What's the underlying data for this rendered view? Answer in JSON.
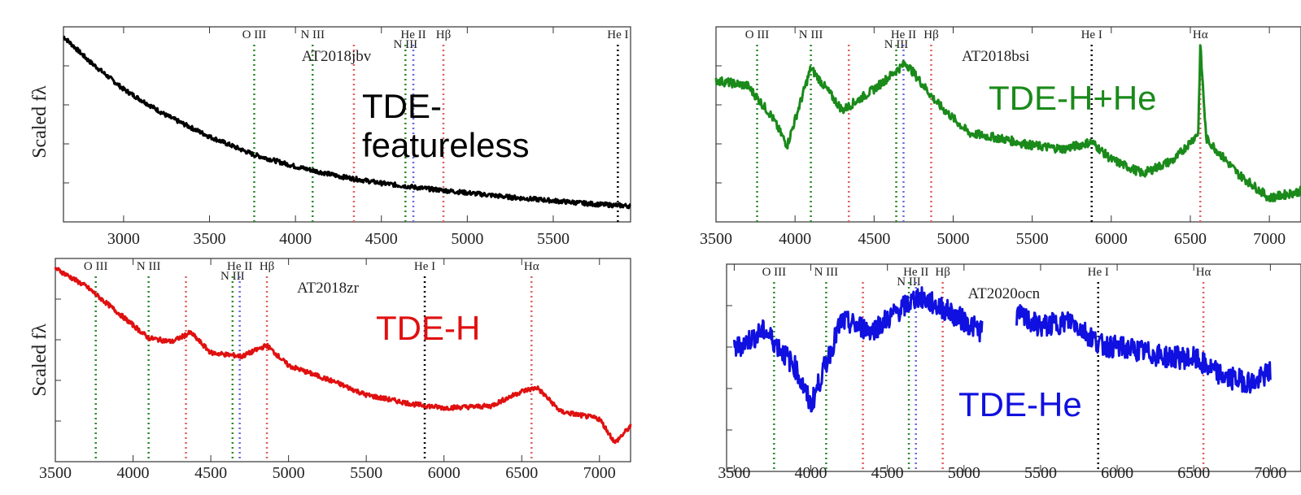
{
  "ylabel": "Scaled fλ",
  "chart_data": [
    {
      "type": "line",
      "object": "AT2018jbv",
      "class_label": "TDE-\nfeatureless",
      "color": "#000000",
      "xlim": [
        2650,
        5950
      ],
      "xticks": [
        3000,
        3500,
        4000,
        4500,
        5000,
        5500
      ],
      "lines": [
        {
          "label": "O III",
          "x": 3760,
          "color": "#2a8a2a"
        },
        {
          "label": "N III",
          "x": 4100,
          "color": "#2a8a2a"
        },
        {
          "label": "",
          "x": 4340,
          "color": "#e06060"
        },
        {
          "label": "N III",
          "x": 4640,
          "color": "#2a8a2a"
        },
        {
          "label": "He II",
          "x": 4686,
          "color": "#6a6ae0"
        },
        {
          "label": "Hβ",
          "x": 4861,
          "color": "#e06060"
        },
        {
          "label": "He I",
          "x": 5876,
          "color": "#000000"
        }
      ],
      "series": [
        {
          "x": [
            2650,
            2800,
            3000,
            3250,
            3500,
            3750,
            4000,
            4250,
            4500,
            4750,
            5000,
            5250,
            5500,
            5750,
            5950
          ],
          "y": [
            1.0,
            0.86,
            0.7,
            0.55,
            0.43,
            0.33,
            0.26,
            0.205,
            0.165,
            0.135,
            0.11,
            0.085,
            0.065,
            0.045,
            0.035
          ]
        }
      ]
    },
    {
      "type": "line",
      "object": "AT2018bsi",
      "class_label": "TDE-H+He",
      "color": "#1a8a1a",
      "xlim": [
        3500,
        7200
      ],
      "xticks": [
        3500,
        4000,
        4500,
        5000,
        5500,
        6000,
        6500,
        7000
      ],
      "lines": [
        {
          "label": "O III",
          "x": 3760,
          "color": "#2a8a2a"
        },
        {
          "label": "N III",
          "x": 4100,
          "color": "#2a8a2a"
        },
        {
          "label": "",
          "x": 4340,
          "color": "#e06060"
        },
        {
          "label": "N III",
          "x": 4640,
          "color": "#2a8a2a"
        },
        {
          "label": "He II",
          "x": 4686,
          "color": "#6a6ae0"
        },
        {
          "label": "Hβ",
          "x": 4861,
          "color": "#e06060"
        },
        {
          "label": "He I",
          "x": 5876,
          "color": "#000000"
        },
        {
          "label": "Hα",
          "x": 6563,
          "color": "#e06060"
        }
      ],
      "series": [
        {
          "x": [
            3500,
            3700,
            3850,
            3950,
            4100,
            4300,
            4500,
            4700,
            4900,
            5100,
            5300,
            5500,
            5700,
            5876,
            6000,
            6200,
            6400,
            6550,
            6563,
            6600,
            6800,
            7000,
            7200
          ],
          "y": [
            0.75,
            0.72,
            0.55,
            0.38,
            0.82,
            0.58,
            0.7,
            0.85,
            0.62,
            0.45,
            0.42,
            0.38,
            0.36,
            0.4,
            0.3,
            0.22,
            0.3,
            0.45,
            0.95,
            0.42,
            0.22,
            0.08,
            0.12
          ]
        }
      ]
    },
    {
      "type": "line",
      "object": "AT2018zr",
      "class_label": "TDE-H",
      "color": "#e01010",
      "xlim": [
        3500,
        7200
      ],
      "xticks": [
        3500,
        4000,
        4500,
        5000,
        5500,
        6000,
        6500,
        7000
      ],
      "lines": [
        {
          "label": "O III",
          "x": 3760,
          "color": "#2a8a2a"
        },
        {
          "label": "N III",
          "x": 4100,
          "color": "#2a8a2a"
        },
        {
          "label": "",
          "x": 4340,
          "color": "#e06060"
        },
        {
          "label": "N III",
          "x": 4640,
          "color": "#2a8a2a"
        },
        {
          "label": "He II",
          "x": 4686,
          "color": "#6a6ae0"
        },
        {
          "label": "Hβ",
          "x": 4861,
          "color": "#e06060"
        },
        {
          "label": "He I",
          "x": 5876,
          "color": "#000000"
        },
        {
          "label": "Hα",
          "x": 6563,
          "color": "#e06060"
        }
      ],
      "series": [
        {
          "x": [
            3500,
            3700,
            3900,
            4100,
            4250,
            4370,
            4500,
            4700,
            4860,
            5000,
            5300,
            5500,
            5800,
            6000,
            6300,
            6500,
            6600,
            6750,
            7000,
            7100,
            7200
          ],
          "y": [
            1.0,
            0.9,
            0.76,
            0.62,
            0.6,
            0.65,
            0.54,
            0.52,
            0.58,
            0.47,
            0.38,
            0.31,
            0.26,
            0.24,
            0.25,
            0.33,
            0.35,
            0.22,
            0.18,
            0.05,
            0.14
          ]
        }
      ]
    },
    {
      "type": "line",
      "object": "AT2020ocn",
      "class_label": "TDE-He",
      "color": "#1010e0",
      "xlim": [
        3450,
        7200
      ],
      "xticks": [
        3500,
        4000,
        4500,
        5000,
        5500,
        6000,
        6500,
        7000
      ],
      "lines": [
        {
          "label": "O III",
          "x": 3760,
          "color": "#2a8a2a"
        },
        {
          "label": "N III",
          "x": 4100,
          "color": "#2a8a2a"
        },
        {
          "label": "",
          "x": 4340,
          "color": "#e06060"
        },
        {
          "label": "N III",
          "x": 4640,
          "color": "#2a8a2a"
        },
        {
          "label": "He II",
          "x": 4686,
          "color": "#6a6ae0"
        },
        {
          "label": "Hβ",
          "x": 4861,
          "color": "#e06060"
        },
        {
          "label": "He I",
          "x": 5876,
          "color": "#000000"
        },
        {
          "label": "Hα",
          "x": 6563,
          "color": "#e06060"
        }
      ],
      "series": [
        {
          "x": [
            3500,
            3700,
            3900,
            4000,
            4200,
            4400,
            4600,
            4700,
            4900,
            5100,
            5350,
            5500,
            5700,
            5900,
            6100,
            6300,
            6500,
            6700,
            6900,
            7000
          ],
          "y": [
            0.6,
            0.7,
            0.5,
            0.3,
            0.75,
            0.7,
            0.82,
            0.88,
            0.8,
            0.7,
            0.78,
            0.72,
            0.75,
            0.62,
            0.6,
            0.56,
            0.55,
            0.45,
            0.42,
            0.48
          ]
        }
      ]
    }
  ]
}
